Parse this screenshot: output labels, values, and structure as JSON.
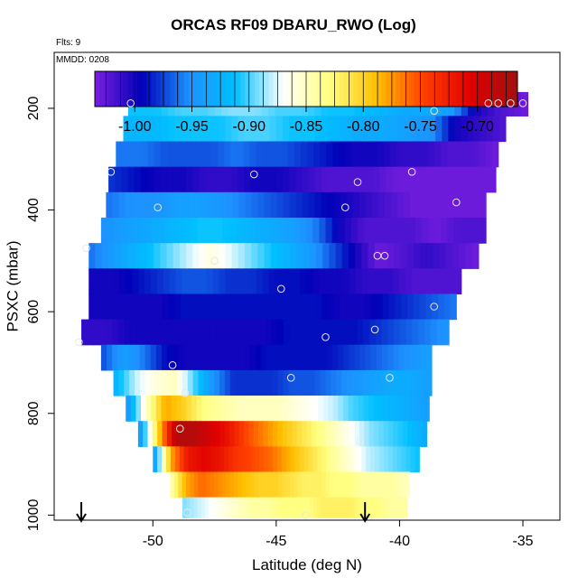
{
  "header": {
    "title": "ORCAS RF09 DBARU_RWO (Log)",
    "flights": "Flts: 9",
    "date": "MMDD: 0208"
  },
  "chart_data": {
    "type": "heatmap",
    "title": "ORCAS RF09 DBARU_RWO (Log)",
    "xlabel": "Latitude (deg N)",
    "ylabel": "PSXC (mbar)",
    "xlim": [
      -54,
      -33.5
    ],
    "ylim": [
      1010,
      90
    ],
    "x_ticks": [
      -50,
      -45,
      -40,
      -35
    ],
    "y_ticks": [
      200,
      400,
      600,
      800,
      1000
    ],
    "colorbar": {
      "range": [
        -1.035,
        -0.665
      ],
      "ticks": [
        -1.0,
        -0.95,
        -0.9,
        -0.85,
        -0.8,
        -0.75,
        -0.7
      ],
      "tick_labels": [
        "-1.00",
        "-0.95",
        "-0.90",
        "-0.85",
        "-0.80",
        "-0.75",
        "-0.70"
      ],
      "colors": [
        "#7b1fe0",
        "#0000b8",
        "#1e90ff",
        "#00c0ff",
        "#ffffff",
        "#ffff80",
        "#ffc000",
        "#ff4000",
        "#e00000",
        "#a01010"
      ]
    },
    "layers": [
      {
        "p": 190,
        "x0": -51.0,
        "x1": -34.8,
        "v": [
          -0.91,
          -0.91,
          -0.9,
          -0.9,
          -0.89,
          -0.89,
          -0.9,
          -0.9,
          -0.91,
          -0.91,
          -0.92,
          -0.93,
          -0.93,
          -0.94,
          -1.0,
          -1.02,
          -1.03
        ]
      },
      {
        "p": 240,
        "x0": -51.2,
        "x1": -35.7,
        "v": [
          -0.92,
          -0.92,
          -0.91,
          -0.91,
          -0.91,
          -0.9,
          -0.9,
          -0.91,
          -0.91,
          -0.92,
          -0.93,
          -0.93,
          -0.94,
          -0.95,
          -1.0,
          -1.01,
          -1.02
        ]
      },
      {
        "p": 290,
        "x0": -51.5,
        "x1": -36.0,
        "v": [
          -0.96,
          -0.96,
          -0.97,
          -0.97,
          -0.97,
          -0.96,
          -0.97,
          -0.97,
          -0.98,
          -0.99,
          -1.0,
          -1.0,
          -1.01,
          -1.01,
          -1.02,
          -1.02,
          -1.03
        ]
      },
      {
        "p": 340,
        "x0": -51.8,
        "x1": -36.1,
        "v": [
          -0.98,
          -0.99,
          -1.0,
          -1.0,
          -1.01,
          -1.01,
          -1.0,
          -1.0,
          -1.01,
          -1.02,
          -1.02,
          -1.02,
          -1.03,
          -1.03,
          -1.03,
          -1.03,
          -1.03
        ]
      },
      {
        "p": 390,
        "x0": -51.9,
        "x1": -36.5,
        "v": [
          -0.96,
          -0.95,
          -0.95,
          -0.94,
          -0.94,
          -0.95,
          -0.96,
          -0.97,
          -0.98,
          -0.99,
          -1.0,
          -1.01,
          -1.02,
          -1.03,
          -1.03,
          -1.03,
          -1.03
        ]
      },
      {
        "p": 440,
        "x0": -52.1,
        "x1": -36.5,
        "v": [
          -0.95,
          -0.94,
          -0.93,
          -0.92,
          -0.91,
          -0.91,
          -0.92,
          -0.93,
          -0.94,
          -0.96,
          -1.0,
          -1.02,
          -1.02,
          -1.02,
          -1.03,
          -1.02,
          -1.02
        ]
      },
      {
        "p": 490,
        "x0": -52.6,
        "x1": -36.8,
        "v": [
          -0.96,
          -0.94,
          -0.92,
          -0.9,
          -0.88,
          -0.86,
          -0.88,
          -0.9,
          -0.92,
          -0.94,
          -0.97,
          -1.0,
          -1.03,
          -1.02,
          -1.01,
          -1.02,
          -1.03
        ]
      },
      {
        "p": 540,
        "x0": -52.6,
        "x1": -37.5,
        "v": [
          -1.0,
          -1.0,
          -0.99,
          -0.98,
          -0.97,
          -0.97,
          -0.98,
          -0.98,
          -0.99,
          -0.99,
          -1.0,
          -1.0,
          -1.01,
          -1.01,
          -1.02,
          -1.02,
          -1.02
        ]
      },
      {
        "p": 590,
        "x0": -52.6,
        "x1": -37.7,
        "v": [
          -1.0,
          -1.0,
          -1.0,
          -1.0,
          -0.99,
          -0.99,
          -0.99,
          -0.99,
          -0.99,
          -0.99,
          -0.99,
          -1.0,
          -1.0,
          -0.99,
          -0.98,
          -0.97,
          -0.96
        ]
      },
      {
        "p": 640,
        "x0": -52.9,
        "x1": -38.0,
        "v": [
          -1.01,
          -1.01,
          -1.0,
          -1.0,
          -1.0,
          -1.0,
          -1.0,
          -1.0,
          -1.0,
          -0.99,
          -0.99,
          -0.99,
          -0.99,
          -0.98,
          -0.97,
          -0.96,
          -0.95
        ]
      },
      {
        "p": 690,
        "x0": -52.1,
        "x1": -38.7,
        "v": [
          -0.97,
          -0.94,
          -0.96,
          -0.99,
          -1.0,
          -1.0,
          -1.0,
          -1.0,
          -0.99,
          -0.99,
          -0.99,
          -0.99,
          -0.98,
          -0.97,
          -0.96,
          -0.95,
          -0.94
        ]
      },
      {
        "p": 740,
        "x0": -51.6,
        "x1": -38.7,
        "v": [
          -0.92,
          -0.88,
          -0.86,
          -0.85,
          -0.9,
          -0.95,
          -0.98,
          -0.98,
          -0.98,
          -0.97,
          -0.97,
          -0.96,
          -0.95,
          -0.94,
          -0.93,
          -0.93,
          -0.94
        ]
      },
      {
        "p": 790,
        "x0": -51.1,
        "x1": -38.8,
        "v": [
          -0.94,
          -0.85,
          -0.78,
          -0.8,
          -0.83,
          -0.84,
          -0.85,
          -0.85,
          -0.85,
          -0.86,
          -0.87,
          -0.88,
          -0.9,
          -0.91,
          -0.92,
          -0.93,
          -0.94
        ]
      },
      {
        "p": 840,
        "x0": -50.6,
        "x1": -38.9,
        "v": [
          -0.94,
          -0.8,
          -0.68,
          -0.68,
          -0.7,
          -0.72,
          -0.75,
          -0.77,
          -0.79,
          -0.81,
          -0.83,
          -0.85,
          -0.87,
          -0.89,
          -0.9,
          -0.91,
          -0.93
        ]
      },
      {
        "p": 890,
        "x0": -50.0,
        "x1": -39.2,
        "v": [
          -0.93,
          -0.78,
          -0.72,
          -0.71,
          -0.72,
          -0.74,
          -0.75,
          -0.76,
          -0.78,
          -0.8,
          -0.82,
          -0.84,
          -0.86,
          -0.88,
          -0.89,
          -0.9,
          -0.91
        ]
      },
      {
        "p": 940,
        "x0": -49.3,
        "x1": -39.6,
        "v": [
          -0.84,
          -0.78,
          -0.76,
          -0.77,
          -0.78,
          -0.79,
          -0.8,
          -0.8,
          -0.81,
          -0.82,
          -0.82,
          -0.83,
          -0.83,
          -0.84,
          -0.84,
          -0.84,
          -0.85
        ]
      },
      {
        "p": 990,
        "x0": -48.8,
        "x1": -39.7,
        "v": [
          -0.89,
          -0.88,
          -0.87,
          -0.86,
          -0.85,
          -0.84,
          -0.84,
          -0.83,
          -0.83,
          -0.83,
          -0.82,
          -0.82,
          -0.82,
          -0.83,
          -0.83,
          -0.84,
          -0.84
        ]
      }
    ],
    "points": [
      {
        "x": -50.9,
        "p": 190
      },
      {
        "x": -38.6,
        "p": 205
      },
      {
        "x": -36.4,
        "p": 190
      },
      {
        "x": -36.0,
        "p": 190
      },
      {
        "x": -35.5,
        "p": 190
      },
      {
        "x": -35.0,
        "p": 190
      },
      {
        "x": -51.7,
        "p": 325
      },
      {
        "x": -45.9,
        "p": 330
      },
      {
        "x": -41.7,
        "p": 345
      },
      {
        "x": -39.5,
        "p": 325
      },
      {
        "x": -49.8,
        "p": 395
      },
      {
        "x": -42.2,
        "p": 395
      },
      {
        "x": -37.7,
        "p": 385
      },
      {
        "x": -52.7,
        "p": 475
      },
      {
        "x": -47.5,
        "p": 500
      },
      {
        "x": -40.9,
        "p": 490
      },
      {
        "x": -40.6,
        "p": 490
      },
      {
        "x": -44.8,
        "p": 555
      },
      {
        "x": -38.6,
        "p": 590
      },
      {
        "x": -53.0,
        "p": 660
      },
      {
        "x": -43.0,
        "p": 650
      },
      {
        "x": -41.0,
        "p": 635
      },
      {
        "x": -49.2,
        "p": 705
      },
      {
        "x": -44.4,
        "p": 730
      },
      {
        "x": -40.4,
        "p": 730
      },
      {
        "x": -48.7,
        "p": 760
      },
      {
        "x": -48.9,
        "p": 830
      },
      {
        "x": -41.6,
        "p": 855
      },
      {
        "x": -48.6,
        "p": 995
      },
      {
        "x": -43.8,
        "p": 1000
      }
    ],
    "arrows": [
      -52.9,
      -41.4
    ]
  }
}
